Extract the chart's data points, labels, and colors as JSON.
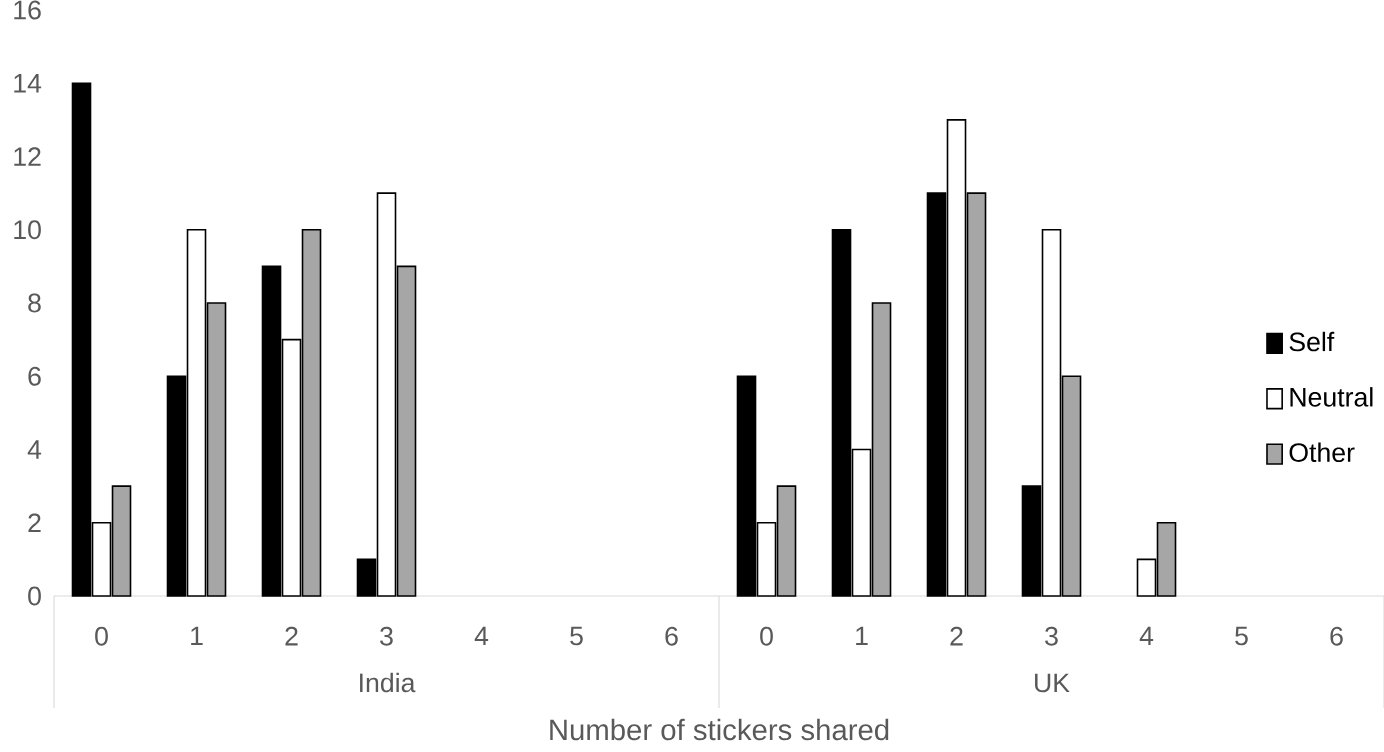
{
  "chart_data": {
    "type": "bar",
    "xlabel": "Number of stickers shared",
    "categories": [
      "0",
      "1",
      "2",
      "3",
      "4",
      "5",
      "6",
      "0",
      "1",
      "2",
      "3",
      "4",
      "5",
      "6"
    ],
    "annotations": [
      "India",
      "UK"
    ],
    "series": [
      {
        "name": "Self",
        "color": "#000000",
        "values": [
          14,
          6,
          9,
          1,
          0,
          0,
          0,
          6,
          10,
          11,
          3,
          0,
          0,
          0
        ]
      },
      {
        "name": "Neutral",
        "color": "#ffffff",
        "values": [
          2,
          10,
          7,
          11,
          0,
          0,
          0,
          2,
          4,
          13,
          10,
          1,
          0,
          0
        ]
      },
      {
        "name": "Other",
        "color": "#a6a6a6",
        "values": [
          3,
          8,
          10,
          9,
          0,
          0,
          0,
          3,
          8,
          11,
          6,
          2,
          0,
          0
        ]
      }
    ],
    "ylim": [
      0,
      16
    ],
    "yticks": [
      0,
      2,
      4,
      6,
      8,
      10,
      12,
      14,
      16
    ],
    "legend": "right"
  }
}
